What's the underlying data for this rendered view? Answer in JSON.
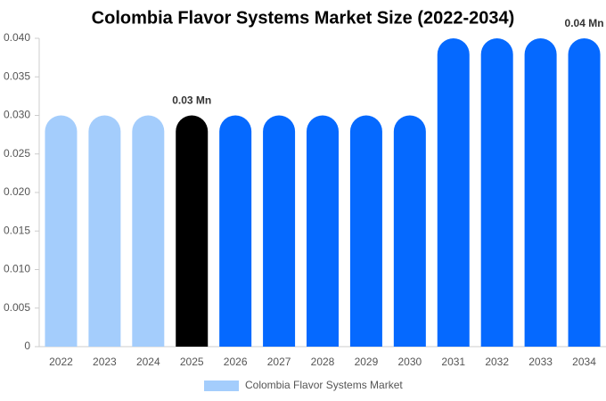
{
  "chart_data": {
    "type": "bar",
    "title": "Colombia Flavor Systems Market Size (2022-2034)",
    "categories": [
      "2022",
      "2023",
      "2024",
      "2025",
      "2026",
      "2027",
      "2028",
      "2029",
      "2030",
      "2031",
      "2032",
      "2033",
      "2034"
    ],
    "series": [
      {
        "name": "Colombia Flavor Systems Market",
        "color": "#a4cdfc",
        "colors": [
          "#a4cdfc",
          "#a4cdfc",
          "#a4cdfc",
          "#000000",
          "#0569ff",
          "#0569ff",
          "#0569ff",
          "#0569ff",
          "#0569ff",
          "#0569ff",
          "#0569ff",
          "#0569ff",
          "#0569ff"
        ],
        "values": [
          0.03,
          0.03,
          0.03,
          0.03,
          0.03,
          0.03,
          0.03,
          0.03,
          0.03,
          0.04,
          0.04,
          0.04,
          0.04
        ],
        "value_labels": [
          null,
          null,
          null,
          "0.03 Mn",
          null,
          null,
          null,
          null,
          null,
          null,
          null,
          null,
          "0.04 Mn"
        ]
      }
    ],
    "ylim": [
      0,
      0.04
    ],
    "yticks": [
      0,
      0.005,
      {
        "value": 0.01,
        "label": "0.010"
      },
      0.015,
      {
        "value": 0.02,
        "label": "0.020"
      },
      0.025,
      {
        "value": 0.03,
        "label": "0.030"
      },
      0.035,
      {
        "value": 0.04,
        "label": "0.040"
      }
    ],
    "legend": "bottom"
  }
}
